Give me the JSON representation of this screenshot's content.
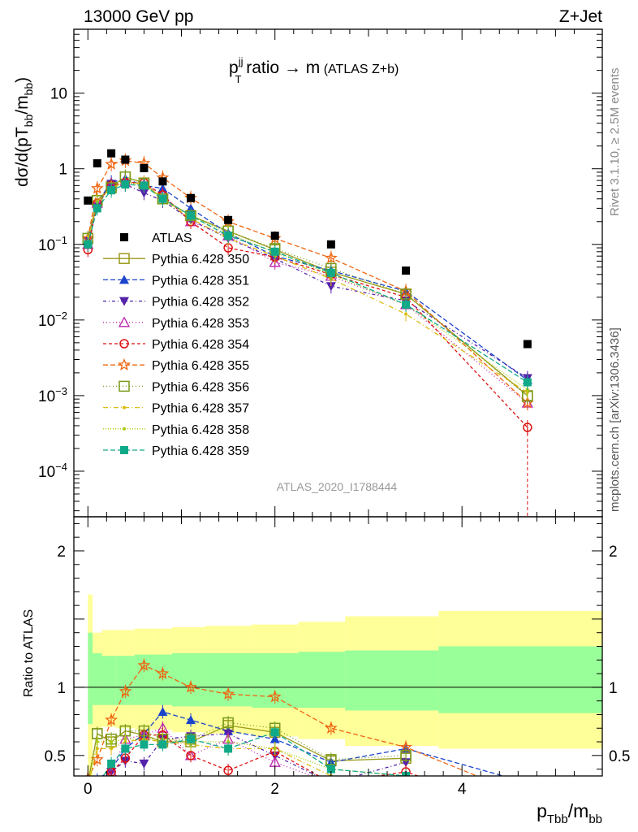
{
  "header": {
    "left": "13000 GeV pp",
    "right": "Z+Jet"
  },
  "side_labels": {
    "rivet": "Rivet 3.1.10, ≥ 2.5M events",
    "mcplots": "mcplots.cern.ch [arXiv:1306.3436]"
  },
  "plot_title": {
    "p": "p",
    "sup": "jj",
    "sub": "T",
    "rest": " ratio → m",
    "small": " (ATLAS Z+b)"
  },
  "y_label_top": {
    "a": "dσ/d(pT",
    "sub1": "bb",
    "b": "/m",
    "sub2": "bb",
    "c": ")"
  },
  "y_label_bottom": "Ratio to ATLAS",
  "x_label": {
    "p": "p",
    "sub1": "Tbb",
    "b": "/m",
    "sub2": "bb"
  },
  "watermark": "ATLAS_2020_I1788444",
  "chart_data": {
    "type": "scatter",
    "title": "pT^jj ratio -> m (ATLAS Z+b)",
    "xlabel": "p_Tbb/m_bb",
    "ylabel": "dσ/d(pT_bb/m_bb)",
    "ratio_ylabel": "Ratio to ATLAS",
    "x": [
      0.0,
      0.1,
      0.25,
      0.4,
      0.6,
      0.8,
      1.1,
      1.5,
      2.0,
      2.6,
      3.4,
      4.7
    ],
    "xlim": [
      -0.15,
      5.5
    ],
    "ylim_log": [
      2.5e-05,
      70
    ],
    "ratio_ylim": [
      0.35,
      2.25
    ],
    "x_ticks": [
      0,
      2,
      4
    ],
    "y_ticks_top": [
      {
        "value": 10,
        "base": "10",
        "exp": ""
      },
      {
        "value": 1,
        "base": "1",
        "exp": ""
      },
      {
        "value": 0.1,
        "base": "10",
        "exp": "−1"
      },
      {
        "value": 0.01,
        "base": "10",
        "exp": "−2"
      },
      {
        "value": 0.001,
        "base": "10",
        "exp": "−3"
      },
      {
        "value": 0.0001,
        "base": "10",
        "exp": "−4"
      }
    ],
    "ratio_ticks": [
      "0.5",
      "1",
      "2"
    ],
    "data": {
      "name": "ATLAS",
      "values": [
        0.38,
        1.18,
        1.6,
        1.32,
        1.02,
        0.68,
        0.41,
        0.21,
        0.13,
        0.1,
        0.045,
        0.0048
      ]
    },
    "band": {
      "x_edges": [
        0.0,
        0.05,
        0.15,
        0.3,
        0.5,
        0.7,
        0.9,
        1.25,
        1.75,
        2.25,
        2.75,
        3.75,
        5.5
      ],
      "green_low": [
        0.73,
        0.87,
        0.87,
        0.87,
        0.87,
        0.87,
        0.86,
        0.86,
        0.85,
        0.85,
        0.83,
        0.81
      ],
      "green_high": [
        1.4,
        1.25,
        1.23,
        1.23,
        1.24,
        1.24,
        1.25,
        1.25,
        1.25,
        1.26,
        1.27,
        1.3
      ],
      "yellow_low": [
        0.35,
        0.7,
        0.71,
        0.7,
        0.69,
        0.69,
        0.67,
        0.66,
        0.64,
        0.62,
        0.57,
        0.55
      ],
      "yellow_high": [
        1.68,
        1.4,
        1.42,
        1.42,
        1.43,
        1.43,
        1.44,
        1.45,
        1.46,
        1.48,
        1.52,
        1.56
      ]
    },
    "series": [
      {
        "name": "Pythia 6.428 350",
        "color": "#9a9a1a",
        "dash": "",
        "marker": "square-open",
        "values": [
          0.12,
          0.38,
          0.58,
          0.78,
          0.65,
          0.4,
          0.24,
          0.15,
          0.085,
          0.043,
          0.022,
          0.001
        ],
        "ratio": [
          0.3,
          0.66,
          0.6,
          0.68,
          0.65,
          0.6,
          0.6,
          0.72,
          0.67,
          0.46,
          0.48,
          null
        ]
      },
      {
        "name": "Pythia 6.428 351",
        "color": "#1a44cc",
        "dash": "6,3",
        "marker": "triangle-up",
        "values": [
          0.11,
          0.36,
          0.66,
          0.74,
          0.6,
          0.55,
          0.3,
          0.14,
          0.07,
          0.045,
          0.024,
          0.0016
        ],
        "ratio": [
          0.28,
          0.32,
          0.4,
          0.55,
          0.66,
          0.82,
          0.76,
          0.68,
          0.62,
          0.45,
          0.55,
          0.3
        ]
      },
      {
        "name": "Pythia 6.428 352",
        "color": "#5522aa",
        "dash": "4,3,1,3",
        "marker": "triangle-down",
        "values": [
          0.11,
          0.32,
          0.63,
          0.62,
          0.48,
          0.38,
          0.21,
          0.12,
          0.065,
          0.028,
          0.018,
          0.0017
        ],
        "ratio": [
          0.3,
          0.3,
          0.38,
          0.46,
          0.44,
          0.62,
          0.64,
          0.66,
          0.5,
          0.3,
          0.45,
          null
        ]
      },
      {
        "name": "Pythia 6.428 353",
        "color": "#bb22aa",
        "dash": "1,3",
        "marker": "triangle-open",
        "values": [
          0.1,
          0.35,
          0.6,
          0.66,
          0.62,
          0.46,
          0.2,
          0.13,
          0.058,
          0.038,
          0.016,
          0.0008
        ],
        "ratio": [
          0.28,
          0.3,
          0.38,
          0.62,
          0.65,
          0.7,
          0.5,
          0.62,
          0.45,
          0.3,
          0.35,
          null
        ]
      },
      {
        "name": "Pythia 6.428 354",
        "color": "#dd1111",
        "dash": "4,3",
        "marker": "circle-open",
        "values": [
          0.085,
          0.35,
          0.6,
          0.66,
          0.65,
          0.45,
          0.2,
          0.09,
          0.068,
          0.04,
          0.02,
          0.00038
        ],
        "ratio": [
          0.22,
          0.3,
          0.38,
          0.48,
          0.65,
          0.65,
          0.5,
          0.39,
          0.53,
          0.3,
          0.38,
          0.08
        ]
      },
      {
        "name": "Pythia 6.428 355",
        "color": "#ee6611",
        "dash": "6,3",
        "marker": "star",
        "values": [
          0.12,
          0.55,
          1.15,
          1.28,
          1.18,
          0.76,
          0.41,
          0.2,
          0.12,
          0.066,
          0.024,
          0.0008
        ],
        "ratio": [
          0.33,
          0.47,
          0.76,
          0.97,
          1.16,
          1.1,
          1.0,
          0.95,
          0.93,
          0.7,
          0.56,
          0.2
        ]
      },
      {
        "name": "Pythia 6.428 356",
        "color": "#7a9a1a",
        "dash": "1,3",
        "marker": "square-open",
        "values": [
          0.12,
          0.38,
          0.56,
          0.78,
          0.64,
          0.4,
          0.24,
          0.15,
          0.088,
          0.048,
          0.022,
          0.00098
        ],
        "ratio": [
          0.3,
          0.66,
          0.62,
          0.68,
          0.68,
          0.62,
          0.62,
          0.74,
          0.7,
          0.47,
          0.5,
          null
        ]
      },
      {
        "name": "Pythia 6.428 357",
        "color": "#ddbb11",
        "dash": "6,3,1,3",
        "marker": "dot",
        "values": [
          0.11,
          0.37,
          0.56,
          0.66,
          0.64,
          0.4,
          0.22,
          0.12,
          0.07,
          0.035,
          0.012,
          0.0011
        ],
        "ratio": [
          0.28,
          0.55,
          0.55,
          0.6,
          0.62,
          0.6,
          0.58,
          0.55,
          0.55,
          0.35,
          0.3,
          null
        ]
      },
      {
        "name": "Pythia 6.428 358",
        "color": "#aacc11",
        "dash": "1,2",
        "marker": "dot",
        "values": [
          0.11,
          0.36,
          0.55,
          0.66,
          0.6,
          0.4,
          0.24,
          0.14,
          0.078,
          0.04,
          0.016,
          0.0012
        ],
        "ratio": [
          0.28,
          0.6,
          0.6,
          0.62,
          0.62,
          0.62,
          0.6,
          0.6,
          0.55,
          0.4,
          0.35,
          null
        ]
      },
      {
        "name": "Pythia 6.428 359",
        "color": "#11aa88",
        "dash": "6,3",
        "marker": "square",
        "values": [
          0.1,
          0.3,
          0.52,
          0.62,
          0.6,
          0.4,
          0.24,
          0.13,
          0.08,
          0.042,
          0.016,
          0.0015
        ],
        "ratio": [
          0.26,
          0.28,
          0.44,
          0.55,
          0.58,
          0.58,
          0.62,
          0.55,
          0.67,
          0.4,
          0.35,
          0.3
        ]
      }
    ]
  }
}
